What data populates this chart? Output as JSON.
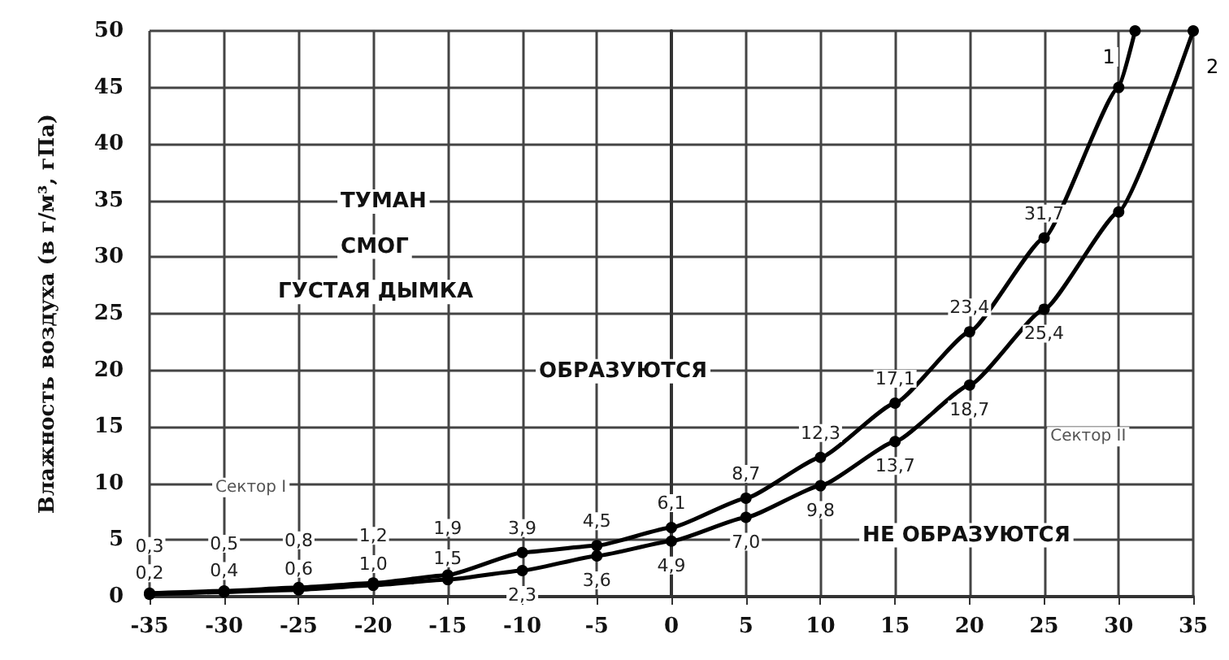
{
  "chart_data": {
    "type": "line",
    "ylabel": "Влажность воздуха (в г/м³, гПа)",
    "x": [
      -35,
      -30,
      -25,
      -20,
      -15,
      -10,
      -5,
      0,
      5,
      10,
      15,
      20,
      25,
      30,
      31.1
    ],
    "series": [
      {
        "name": "1",
        "color": "#000000",
        "values": [
          0.3,
          0.5,
          0.8,
          1.2,
          1.9,
          3.9,
          4.5,
          6.1,
          8.7,
          12.3,
          17.1,
          23.4,
          31.7,
          45,
          50
        ],
        "value_labels": [
          "0,3",
          "0,5",
          "0,8",
          "1,2",
          "1,9",
          "3,9",
          "4,5",
          "6,1",
          "8,7",
          "12,3",
          "17,1",
          "23,4",
          "31,7",
          null,
          null
        ]
      },
      {
        "name": "2",
        "color": "#000000",
        "x": [
          -35,
          -30,
          -25,
          -20,
          -15,
          -10,
          -5,
          0,
          5,
          10,
          15,
          20,
          25,
          30,
          35
        ],
        "values": [
          0.2,
          0.4,
          0.6,
          1.0,
          1.5,
          2.3,
          3.6,
          4.9,
          7.0,
          9.8,
          13.7,
          18.7,
          25.4,
          34,
          50
        ],
        "value_labels": [
          "0,2",
          "0,4",
          "0,6",
          "1,0",
          "1,5",
          "2,3",
          "3,6",
          "4,9",
          "7,0",
          "9,8",
          "13,7",
          "18,7",
          "25,4",
          null,
          null
        ]
      }
    ],
    "xlim": [
      -35,
      35
    ],
    "xticks": [
      -35,
      -30,
      -25,
      -20,
      -15,
      -10,
      -5,
      0,
      5,
      10,
      15,
      20,
      25,
      30,
      35
    ],
    "ylim": [
      0,
      50
    ],
    "yticks": [
      0,
      5,
      10,
      15,
      20,
      25,
      30,
      35,
      40,
      45,
      50
    ],
    "grid": true,
    "legend": false,
    "marker": "circle",
    "line_style": "solid",
    "annotations": [
      "ТУМАН",
      "СМОГ",
      "ГУСТАЯ ДЫМКА",
      "ОБРАЗУЮТСЯ",
      "Сектор I",
      "Сектор II",
      "НЕ ОБРАЗУЮТСЯ"
    ]
  }
}
